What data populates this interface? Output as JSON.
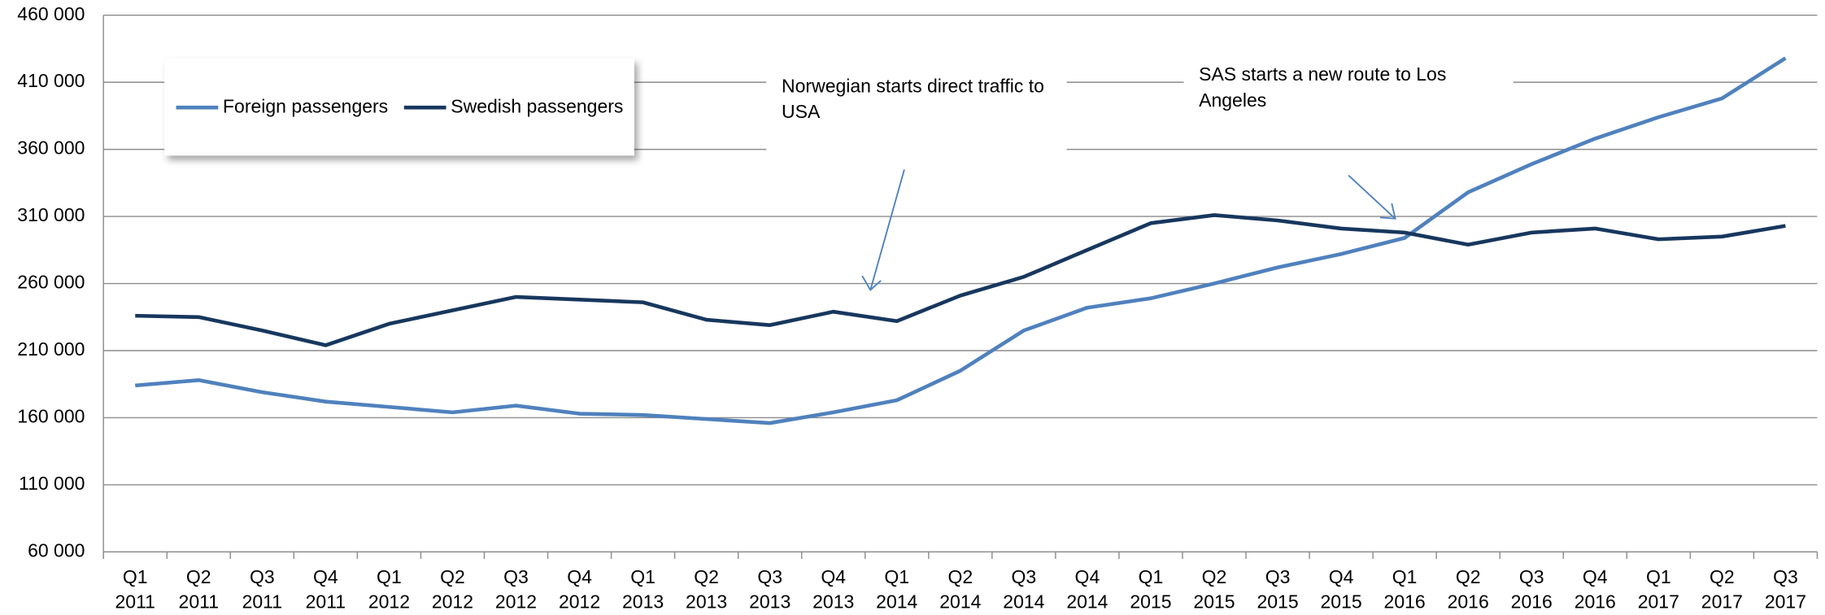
{
  "chart_data": {
    "type": "line",
    "categories": [
      "Q1 2011",
      "Q2 2011",
      "Q3 2011",
      "Q4 2011",
      "Q1 2012",
      "Q2 2012",
      "Q3 2012",
      "Q4 2012",
      "Q1 2013",
      "Q2 2013",
      "Q3 2013",
      "Q4 2013",
      "Q1 2014",
      "Q2 2014",
      "Q3 2014",
      "Q4 2014",
      "Q1 2015",
      "Q2 2015",
      "Q3 2015",
      "Q4 2015",
      "Q1 2016",
      "Q2 2016",
      "Q3 2016",
      "Q4 2016",
      "Q1 2017",
      "Q2 2017",
      "Q3 2017"
    ],
    "series": [
      {
        "name": "Foreign passengers",
        "color": "#4f81bd",
        "values": [
          184000,
          188000,
          179000,
          172000,
          168000,
          164000,
          169000,
          163000,
          162000,
          159000,
          156000,
          164000,
          173000,
          195000,
          225000,
          242000,
          249000,
          260000,
          272000,
          282000,
          294000,
          328000,
          349000,
          368000,
          384000,
          398000,
          428000
        ]
      },
      {
        "name": "Swedish passengers",
        "color": "#17375e",
        "values": [
          236000,
          235000,
          225000,
          214000,
          230000,
          240000,
          250000,
          248000,
          246000,
          233000,
          229000,
          239000,
          232000,
          251000,
          265000,
          285000,
          305000,
          311000,
          307000,
          301000,
          298000,
          289000,
          298000,
          301000,
          293000,
          295000,
          303000
        ]
      }
    ],
    "ylim": [
      60000,
      460000
    ],
    "yticks": [
      {
        "value": 60000,
        "label": "60 000"
      },
      {
        "value": 110000,
        "label": "110 000"
      },
      {
        "value": 160000,
        "label": "160 000"
      },
      {
        "value": 210000,
        "label": "210 000"
      },
      {
        "value": 260000,
        "label": "260 000"
      },
      {
        "value": 310000,
        "label": "310 000"
      },
      {
        "value": 360000,
        "label": "360 000"
      },
      {
        "value": 410000,
        "label": "410 000"
      },
      {
        "value": 460000,
        "label": "460 000"
      }
    ],
    "grid": true,
    "legend": "upper left",
    "annotations": [
      "Norwegian starts direct traffic to USA",
      "SAS starts a new route to Los Angeles"
    ]
  }
}
